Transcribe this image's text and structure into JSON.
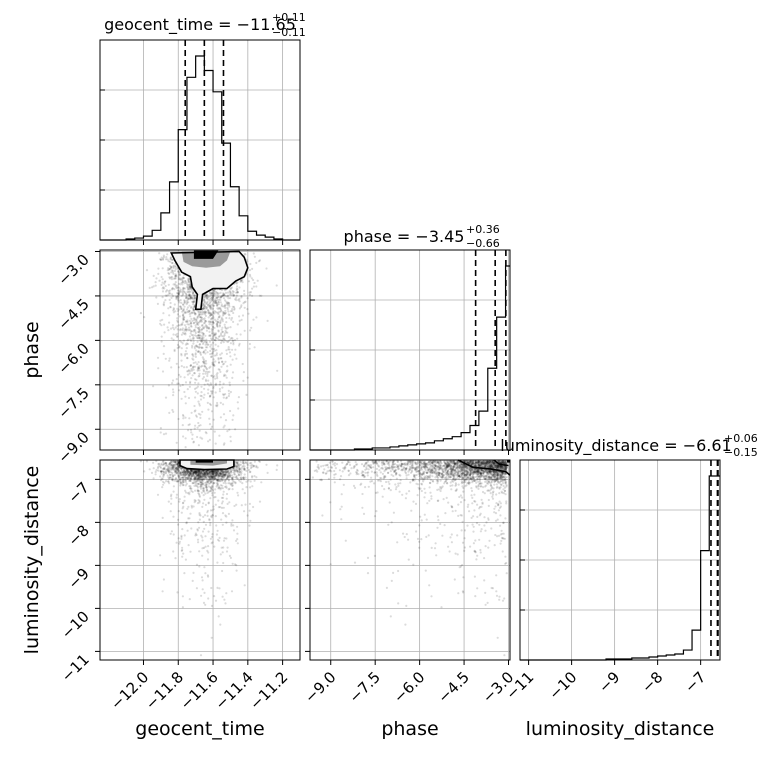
{
  "chart_data": {
    "type": "corner",
    "parameters": [
      "geocent_time",
      "phase",
      "luminosity_distance"
    ],
    "axis_labels": {
      "x": [
        "geocent_time",
        "phase",
        "luminosity_distance"
      ],
      "y": [
        "phase",
        "luminosity_distance"
      ]
    },
    "ranges": {
      "geocent_time": [
        -12.25,
        -11.1
      ],
      "phase": [
        -9.7,
        -2.95
      ],
      "luminosity_distance": [
        -11.2,
        -6.55
      ]
    },
    "ticks": {
      "geocent_time": [
        -12.0,
        -11.8,
        -11.6,
        -11.4,
        -11.2
      ],
      "phase": [
        -9.0,
        -7.5,
        -6.0,
        -4.5,
        -3.0
      ],
      "luminosity_distance": [
        -11,
        -10,
        -9,
        -8,
        -7
      ]
    },
    "tick_labels": {
      "geocent_time": [
        "−12.0",
        "−11.8",
        "−11.6",
        "−11.4",
        "−11.2"
      ],
      "phase": [
        "−9.0",
        "−7.5",
        "−6.0",
        "−4.5",
        "−3.0"
      ],
      "luminosity_distance": [
        "−11",
        "−10",
        "−9",
        "−8",
        "−7"
      ]
    },
    "titles": [
      {
        "param": "geocent_time",
        "prefix": "geocent_time = ",
        "value": "−11.65",
        "upper": "+0.11",
        "lower": "−0.11"
      },
      {
        "param": "phase",
        "prefix": "phase = ",
        "value": "−3.45",
        "upper": "+0.36",
        "lower": "−0.66"
      },
      {
        "param": "luminosity_distance",
        "prefix": "luminosity_distance = ",
        "value": "−6.61",
        "upper": "+0.06",
        "lower": "−0.15"
      }
    ],
    "quantiles": {
      "geocent_time": [
        -11.76,
        -11.65,
        -11.54
      ],
      "phase": [
        -4.11,
        -3.45,
        -3.09
      ],
      "luminosity_distance": [
        -6.76,
        -6.61,
        -6.55
      ]
    },
    "histograms": {
      "geocent_time": {
        "edges": [
          -12.25,
          -12.2,
          -12.15,
          -12.1,
          -12.05,
          -12.0,
          -11.95,
          -11.9,
          -11.85,
          -11.8,
          -11.75,
          -11.7,
          -11.65,
          -11.6,
          -11.55,
          -11.5,
          -11.45,
          -11.4,
          -11.35,
          -11.3,
          -11.25,
          -11.2,
          -11.15,
          -11.1
        ],
        "counts": [
          0,
          0,
          0,
          1,
          2,
          4,
          10,
          28,
          60,
          114,
          168,
          190,
          175,
          153,
          100,
          55,
          25,
          9,
          5,
          3,
          1,
          0,
          0
        ]
      },
      "phase": {
        "edges": [
          -9.7,
          -9.4,
          -9.1,
          -8.8,
          -8.5,
          -8.2,
          -7.9,
          -7.6,
          -7.3,
          -7.0,
          -6.7,
          -6.4,
          -6.1,
          -5.8,
          -5.5,
          -5.2,
          -4.9,
          -4.6,
          -4.3,
          -4.0,
          -3.7,
          -3.4,
          -3.1,
          -2.95
        ],
        "counts": [
          0,
          0,
          0,
          0,
          0,
          1,
          1,
          2,
          2,
          3,
          4,
          5,
          6,
          7,
          9,
          11,
          13,
          17,
          24,
          38,
          80,
          130,
          180
        ]
      },
      "luminosity_distance": {
        "edges": [
          -11.2,
          -11.0,
          -10.8,
          -10.6,
          -10.4,
          -10.2,
          -10.0,
          -9.8,
          -9.6,
          -9.4,
          -9.2,
          -9.0,
          -8.8,
          -8.6,
          -8.4,
          -8.2,
          -8.0,
          -7.8,
          -7.6,
          -7.4,
          -7.2,
          -7.0,
          -6.8,
          -6.55
        ],
        "counts": [
          0,
          0,
          0,
          0,
          0,
          0,
          0,
          0,
          0,
          0,
          1,
          1,
          1,
          2,
          2,
          3,
          4,
          5,
          6,
          10,
          30,
          110,
          185
        ]
      }
    },
    "contours_2d": {
      "phase_vs_geocent_time": {
        "outer": [
          [
            -11.84,
            -3.05
          ],
          [
            -11.82,
            -3.3
          ],
          [
            -11.78,
            -3.7
          ],
          [
            -11.73,
            -3.85
          ],
          [
            -11.72,
            -4.2
          ],
          [
            -11.69,
            -4.45
          ],
          [
            -11.7,
            -4.95
          ],
          [
            -11.67,
            -4.95
          ],
          [
            -11.66,
            -4.45
          ],
          [
            -11.6,
            -4.25
          ],
          [
            -11.52,
            -4.25
          ],
          [
            -11.47,
            -4.0
          ],
          [
            -11.42,
            -3.85
          ],
          [
            -11.4,
            -3.55
          ],
          [
            -11.42,
            -3.2
          ],
          [
            -11.45,
            -3.0
          ]
        ],
        "inner": [
          [
            -11.78,
            -3.0
          ],
          [
            -11.77,
            -3.35
          ],
          [
            -11.72,
            -3.5
          ],
          [
            -11.64,
            -3.55
          ],
          [
            -11.56,
            -3.5
          ],
          [
            -11.52,
            -3.3
          ],
          [
            -11.5,
            -3.0
          ]
        ],
        "core": [
          [
            -11.71,
            -2.97
          ],
          [
            -11.71,
            -3.25
          ],
          [
            -11.6,
            -3.25
          ],
          [
            -11.57,
            -2.97
          ]
        ]
      },
      "luminosity_distance_vs_geocent_time": {
        "outer": [
          [
            -11.79,
            -6.55
          ],
          [
            -11.79,
            -6.68
          ],
          [
            -11.75,
            -6.75
          ],
          [
            -11.65,
            -6.77
          ],
          [
            -11.52,
            -6.76
          ],
          [
            -11.48,
            -6.7
          ],
          [
            -11.48,
            -6.55
          ]
        ],
        "inner": [
          [
            -11.73,
            -6.55
          ],
          [
            -11.73,
            -6.66
          ],
          [
            -11.6,
            -6.68
          ],
          [
            -11.52,
            -6.63
          ],
          [
            -11.52,
            -6.55
          ]
        ],
        "core": [
          [
            -11.7,
            -6.55
          ],
          [
            -11.7,
            -6.61
          ],
          [
            -11.6,
            -6.61
          ],
          [
            -11.6,
            -6.55
          ]
        ]
      },
      "luminosity_distance_vs_phase": {
        "outer": [
          [
            -4.7,
            -6.55
          ],
          [
            -4.2,
            -6.72
          ],
          [
            -3.6,
            -6.76
          ],
          [
            -3.1,
            -6.82
          ],
          [
            -2.95,
            -6.9
          ]
        ],
        "inner": [
          [
            -3.5,
            -6.55
          ],
          [
            -3.3,
            -6.65
          ],
          [
            -3.0,
            -6.68
          ]
        ],
        "core": [
          [
            -3.05,
            -6.55
          ],
          [
            -3.05,
            -6.61
          ],
          [
            -2.95,
            -6.61
          ],
          [
            -2.95,
            -6.55
          ]
        ]
      }
    },
    "scatter_samples": {
      "note": "",
      "geocent_time_mean": -11.65,
      "geocent_time_sd": 0.11,
      "phase_mode": -3.45,
      "luminosity_distance_mode": -6.61
    },
    "grid": true
  }
}
